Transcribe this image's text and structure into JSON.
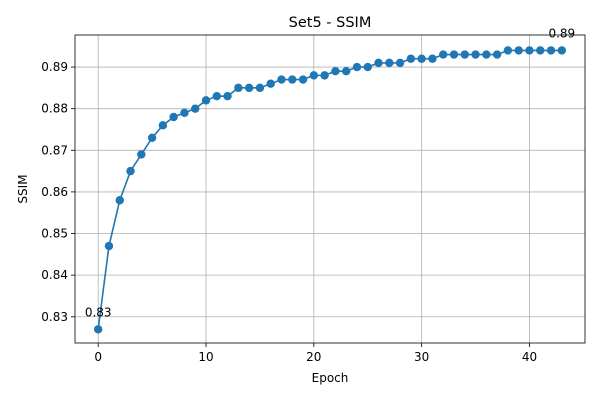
{
  "chart_data": {
    "type": "line",
    "title": "Set5 - SSIM",
    "xlabel": "Epoch",
    "ylabel": "SSIM",
    "xlim": [
      -2.15,
      45.15
    ],
    "ylim": [
      0.8237,
      0.8977
    ],
    "xticks": [
      0,
      10,
      20,
      30,
      40
    ],
    "xtick_labels": [
      "0",
      "10",
      "20",
      "30",
      "40"
    ],
    "yticks": [
      0.83,
      0.84,
      0.85,
      0.86,
      0.87,
      0.88,
      0.89
    ],
    "ytick_labels": [
      "0.83",
      "0.84",
      "0.85",
      "0.86",
      "0.87",
      "0.88",
      "0.89"
    ],
    "grid": true,
    "color": "#1f77b4",
    "series": [
      {
        "x": [
          0,
          1,
          2,
          3,
          4,
          5,
          6,
          7,
          8,
          9,
          10,
          11,
          12,
          13,
          14,
          15,
          16,
          17,
          18,
          19,
          20,
          21,
          22,
          23,
          24,
          25,
          26,
          27,
          28,
          29,
          30,
          31,
          32,
          33,
          34,
          35,
          36,
          37,
          38,
          39,
          40,
          41,
          42,
          43
        ],
        "values": [
          0.827,
          0.847,
          0.858,
          0.865,
          0.869,
          0.873,
          0.876,
          0.878,
          0.879,
          0.88,
          0.882,
          0.883,
          0.883,
          0.885,
          0.885,
          0.885,
          0.886,
          0.887,
          0.887,
          0.887,
          0.888,
          0.888,
          0.889,
          0.889,
          0.89,
          0.89,
          0.891,
          0.891,
          0.891,
          0.892,
          0.892,
          0.892,
          0.893,
          0.893,
          0.893,
          0.893,
          0.893,
          0.893,
          0.894,
          0.894,
          0.894,
          0.894,
          0.894,
          0.894
        ]
      }
    ],
    "annotations": [
      {
        "text": "0.83",
        "x": 0,
        "y": 0.827
      },
      {
        "text": "0.89",
        "x": 43,
        "y": 0.894
      }
    ]
  }
}
